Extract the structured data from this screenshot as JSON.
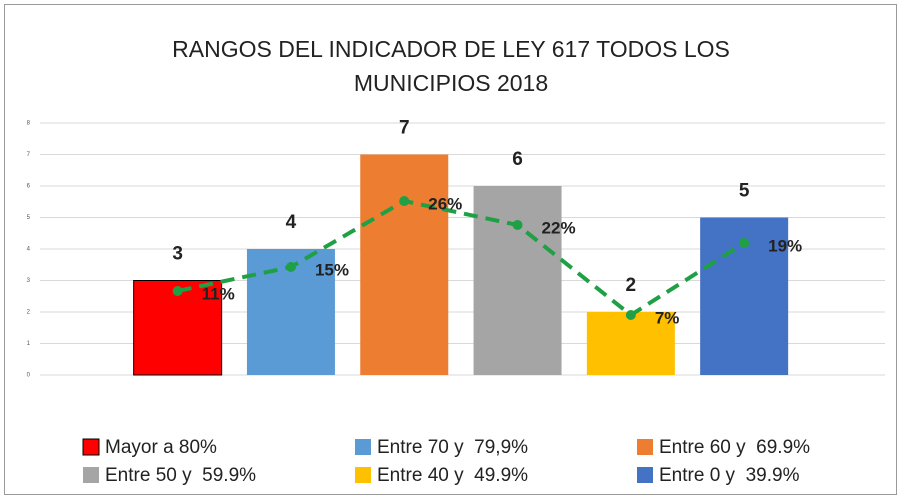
{
  "chart_data": {
    "type": "bar",
    "title": "RANGOS DEL INDICADOR DE LEY 617 TODOS LOS MUNICIPIOS 2018",
    "categories": [
      "Mayor a 80%",
      "Entre 70 y  79,9%",
      "Entre 60 y  69.9%",
      "Entre 50 y  59.9%",
      "Entre 40 y  49.9%",
      "Entre 0 y  39.9%"
    ],
    "values": [
      3,
      4,
      7,
      6,
      2,
      5
    ],
    "colors": [
      "#ff0000",
      "#5b9bd5",
      "#ed7d31",
      "#a5a5a5",
      "#ffc000",
      "#4472c4"
    ],
    "ylim": [
      0,
      8
    ],
    "yticks": [
      0,
      1,
      2,
      3,
      4,
      5,
      6,
      7,
      8
    ],
    "grid": true,
    "line": {
      "values": [
        11,
        15,
        26,
        22,
        7,
        19
      ],
      "value_labels": [
        "11%",
        "15%",
        "26%",
        "22%",
        "7%",
        "19%"
      ],
      "color": "#1fa045",
      "axis": "y2",
      "dashed": true
    },
    "y2lim": [
      -3,
      39
    ],
    "legend": "bottom"
  }
}
